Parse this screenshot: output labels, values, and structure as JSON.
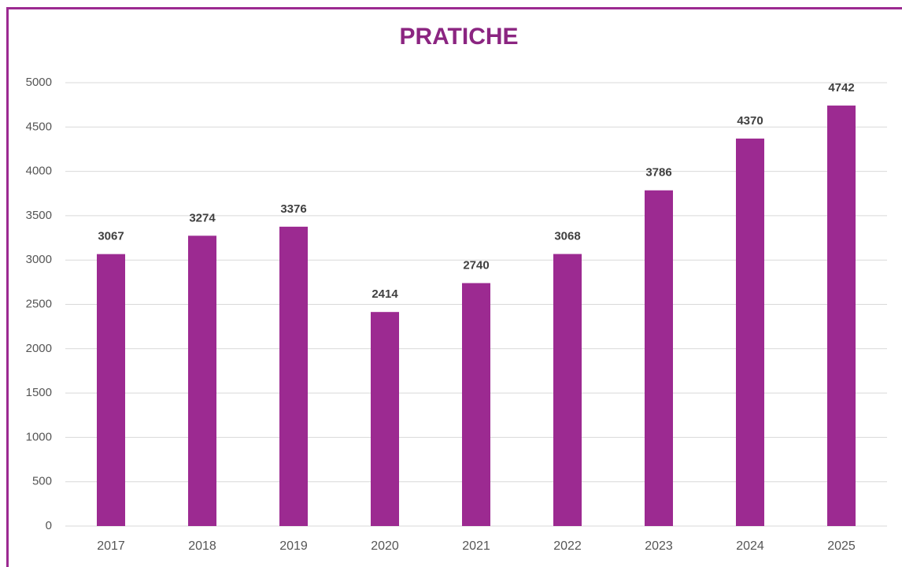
{
  "chart_data": {
    "type": "bar",
    "title": "PRATICHE",
    "categories": [
      "2017",
      "2018",
      "2019",
      "2020",
      "2021",
      "2022",
      "2023",
      "2024",
      "2025"
    ],
    "values": [
      3067,
      3274,
      3376,
      2414,
      2740,
      3068,
      3786,
      4370,
      4742
    ],
    "color": "#9c2a91",
    "ylim": [
      0,
      5000
    ],
    "yticks": [
      0,
      500,
      1000,
      1500,
      2000,
      2500,
      3000,
      3500,
      4000,
      4500,
      5000
    ],
    "grid": true
  }
}
